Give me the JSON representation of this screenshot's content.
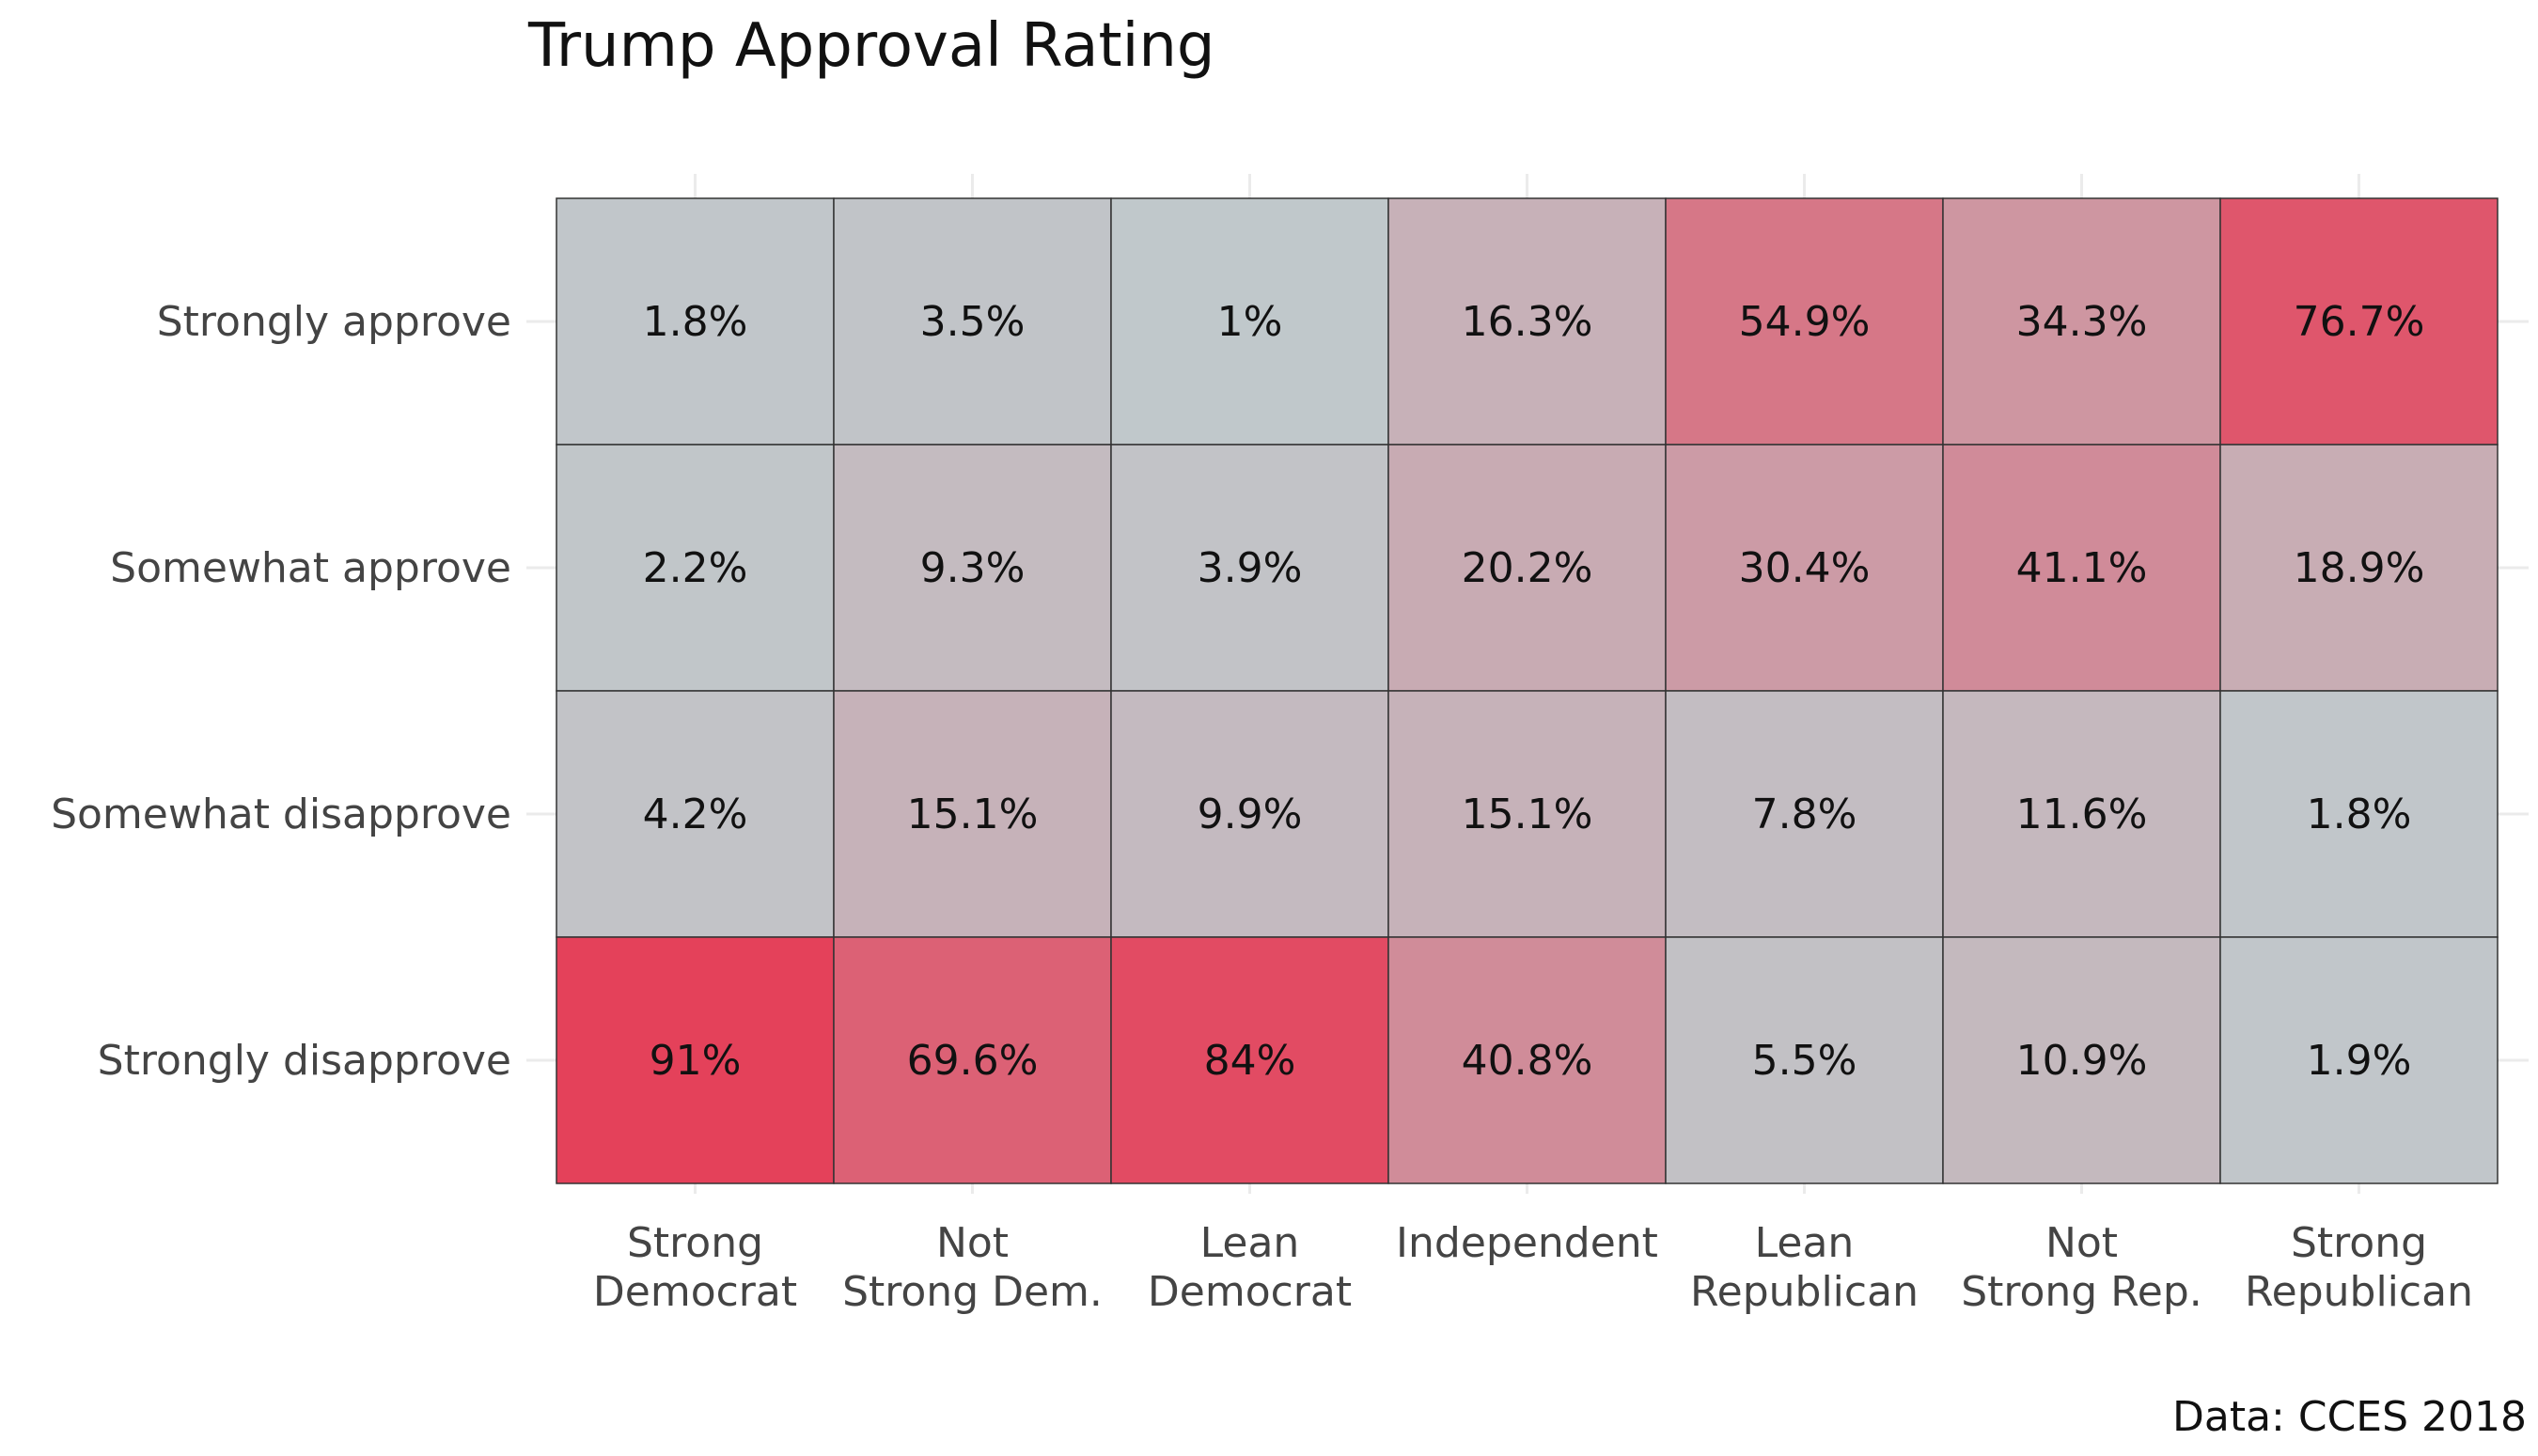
{
  "chart_data": {
    "type": "heatmap",
    "title": "Trump Approval Rating",
    "caption": "Data: CCES 2018",
    "xlabel": "",
    "ylabel": "",
    "x_categories": [
      [
        "Strong",
        "Democrat"
      ],
      [
        "Not",
        "Strong Dem."
      ],
      [
        "Lean",
        "Democrat"
      ],
      [
        "Independent"
      ],
      [
        "Lean",
        "Republican"
      ],
      [
        "Not",
        "Strong Rep."
      ],
      [
        "Strong",
        "Republican"
      ]
    ],
    "y_categories": [
      "Strongly approve",
      "Somewhat approve",
      "Somewhat disapprove",
      "Strongly disapprove"
    ],
    "values": [
      [
        1.8,
        3.5,
        1,
        16.3,
        54.9,
        34.3,
        76.7
      ],
      [
        2.2,
        9.3,
        3.9,
        20.2,
        30.4,
        41.1,
        18.9
      ],
      [
        4.2,
        15.1,
        9.9,
        15.1,
        7.8,
        11.6,
        1.8
      ],
      [
        91,
        69.6,
        84,
        40.8,
        5.5,
        10.9,
        1.9
      ]
    ],
    "labels": [
      [
        "1.8%",
        "3.5%",
        "1%",
        "16.3%",
        "54.9%",
        "34.3%",
        "76.7%"
      ],
      [
        "2.2%",
        "9.3%",
        "3.9%",
        "20.2%",
        "30.4%",
        "41.1%",
        "18.9%"
      ],
      [
        "4.2%",
        "15.1%",
        "9.9%",
        "15.1%",
        "7.8%",
        "11.6%",
        "1.8%"
      ],
      [
        "91%",
        "69.6%",
        "84%",
        "40.8%",
        "5.5%",
        "10.9%",
        "1.9%"
      ]
    ],
    "color_low": "#c0c9cc",
    "color_high": "#e8334f",
    "value_range": [
      0,
      100
    ],
    "grid": true,
    "legend": "none"
  }
}
